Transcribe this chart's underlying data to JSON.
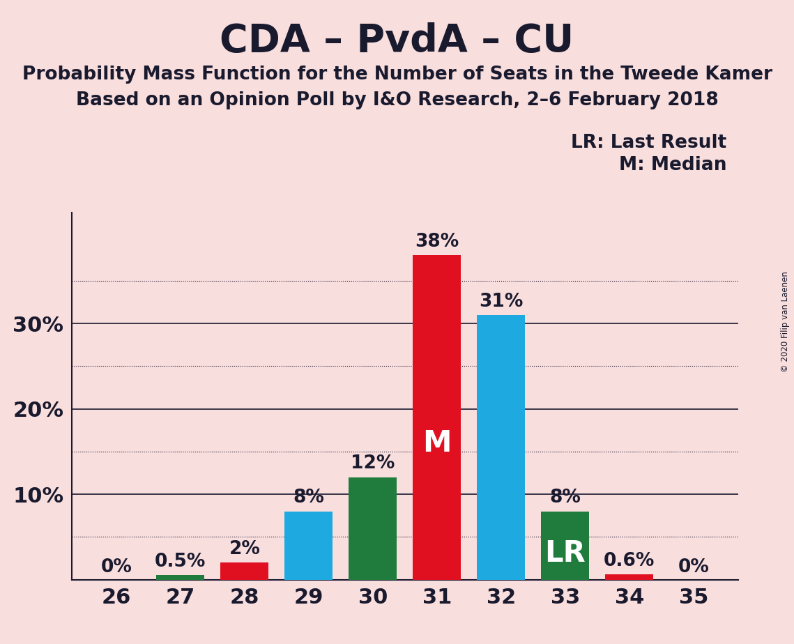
{
  "title": "CDA – PvdA – CU",
  "subtitle1": "Probability Mass Function for the Number of Seats in the Tweede Kamer",
  "subtitle2": "Based on an Opinion Poll by I&O Research, 2–6 February 2018",
  "copyright": "© 2020 Filip van Laenen",
  "seats": [
    26,
    27,
    28,
    29,
    30,
    31,
    32,
    33,
    34,
    35
  ],
  "values": [
    0.0,
    0.5,
    2.0,
    8.0,
    12.0,
    38.0,
    31.0,
    8.0,
    0.6,
    0.0
  ],
  "colors": [
    "#1EAAE1",
    "#1F7C3C",
    "#E01020",
    "#1EAAE1",
    "#1F7C3C",
    "#E01020",
    "#1EAAE1",
    "#1F7C3C",
    "#E01020",
    "#1EAAE1"
  ],
  "labels": [
    "0%",
    "0.5%",
    "2%",
    "8%",
    "12%",
    "38%",
    "31%",
    "8%",
    "0.6%",
    "0%"
  ],
  "median_seat": 31,
  "lr_seat": 33,
  "background_color": "#F9DEDE",
  "bar_width": 0.75,
  "ysolid_lines": [
    10,
    20,
    30
  ],
  "ydotted_lines": [
    5,
    15,
    25,
    35
  ],
  "legend_text1": "LR: Last Result",
  "legend_text2": "M: Median",
  "title_fontsize": 40,
  "subtitle_fontsize": 19,
  "axis_label_fontsize": 22,
  "bar_label_fontsize": 19,
  "legend_fontsize": 19,
  "inside_label_fontsize": 30
}
